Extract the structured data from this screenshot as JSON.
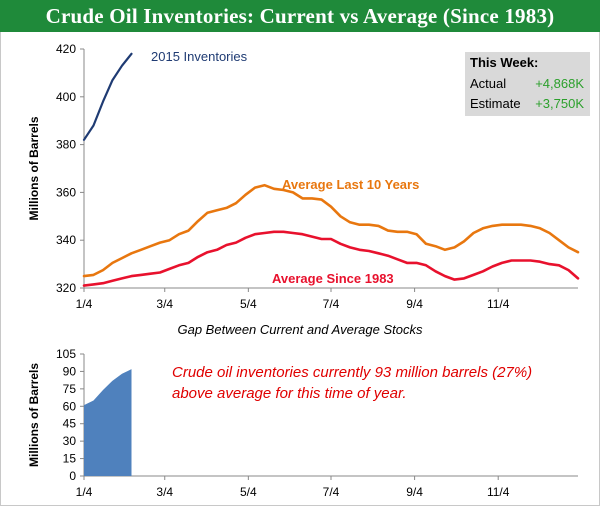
{
  "header": {
    "title": "Crude Oil Inventories: Current vs Average (Since 1983)"
  },
  "stat_box": {
    "title": "This Week:",
    "rows": [
      {
        "label": "Actual",
        "value": "+4,868K"
      },
      {
        "label": "Estimate",
        "value": "+3,750K"
      }
    ]
  },
  "gap_title": "Gap Between Current and Average Stocks",
  "gap_note_line1": "Crude oil inventories currently 93 million barrels (27%)",
  "gap_note_line2": "above average for this time of year.",
  "colors": {
    "header": "#1f8a3a",
    "inv2015": "#1f3b73",
    "avg10": "#e8770f",
    "avg1983": "#e8112d",
    "gap_area": "#4f81bd",
    "positive": "#2ca02c",
    "note": "#e00000"
  },
  "chart_data": [
    {
      "type": "line",
      "title": "",
      "ylabel": "Millions of Barrels",
      "xlabel": "",
      "ylim": [
        320,
        420
      ],
      "yticks": [
        320,
        340,
        360,
        380,
        400,
        420
      ],
      "xlim_week": [
        0,
        52
      ],
      "xticks": [
        {
          "label": "1/4",
          "week": 0
        },
        {
          "label": "3/4",
          "week": 8.5
        },
        {
          "label": "5/4",
          "week": 17.3
        },
        {
          "label": "7/4",
          "week": 26
        },
        {
          "label": "9/4",
          "week": 34.8
        },
        {
          "label": "11/4",
          "week": 43.6
        }
      ],
      "series": [
        {
          "name": "2015 Inventories",
          "color": "#1f3b73",
          "x": [
            0,
            1,
            2,
            3,
            4,
            5
          ],
          "y": [
            382,
            388,
            398,
            407,
            413,
            418
          ]
        },
        {
          "name": "Average Last 10 Years",
          "color": "#e8770f",
          "x": [
            0,
            1,
            2,
            3,
            4,
            5,
            6,
            7,
            8,
            9,
            10,
            11,
            12,
            13,
            14,
            15,
            16,
            17,
            18,
            19,
            20,
            21,
            22,
            23,
            24,
            25,
            26,
            27,
            28,
            29,
            30,
            31,
            32,
            33,
            34,
            35,
            36,
            37,
            38,
            39,
            40,
            41,
            42,
            43,
            44,
            45,
            46,
            47,
            48,
            49,
            50,
            51,
            52
          ],
          "y": [
            325,
            325.5,
            327.5,
            330.5,
            332.5,
            334.5,
            336,
            337.5,
            339,
            340,
            342.5,
            344,
            348,
            351.5,
            352.5,
            353.5,
            355.5,
            359,
            362,
            363,
            361.5,
            361,
            360,
            357.5,
            357.5,
            357,
            354,
            350,
            347.5,
            346.5,
            346.5,
            346,
            344,
            343.5,
            343.5,
            342.5,
            338.5,
            337.5,
            336,
            337,
            339.5,
            343,
            345,
            346,
            346.5,
            346.5,
            346.5,
            346,
            345,
            343,
            340,
            337,
            335
          ]
        },
        {
          "name": "Average Since 1983",
          "color": "#e8112d",
          "x": [
            0,
            1,
            2,
            3,
            4,
            5,
            6,
            7,
            8,
            9,
            10,
            11,
            12,
            13,
            14,
            15,
            16,
            17,
            18,
            19,
            20,
            21,
            22,
            23,
            24,
            25,
            26,
            27,
            28,
            29,
            30,
            31,
            32,
            33,
            34,
            35,
            36,
            37,
            38,
            39,
            40,
            41,
            42,
            43,
            44,
            45,
            46,
            47,
            48,
            49,
            50,
            51,
            52
          ],
          "y": [
            321,
            321.5,
            322,
            323,
            324,
            325,
            325.5,
            326,
            326.5,
            328,
            329.5,
            330.5,
            333,
            335,
            336,
            338,
            339,
            341,
            342.5,
            343,
            343.5,
            343.5,
            343,
            342.5,
            341.5,
            340.5,
            340.5,
            338.5,
            337,
            336,
            335.5,
            334.5,
            333.5,
            332,
            330.5,
            330.5,
            329.5,
            327,
            325,
            323.5,
            324,
            325.5,
            327,
            329,
            330.5,
            331.5,
            331.5,
            331.5,
            331,
            330,
            329.5,
            327.5,
            324
          ]
        }
      ]
    },
    {
      "type": "area",
      "title": "Gap Between Current and Average Stocks",
      "ylabel": "Millions of Barrels",
      "xlabel": "",
      "ylim": [
        0,
        105
      ],
      "yticks": [
        0,
        15,
        30,
        45,
        60,
        75,
        90,
        105
      ],
      "xlim_week": [
        0,
        52
      ],
      "xticks": [
        {
          "label": "1/4",
          "week": 0
        },
        {
          "label": "3/4",
          "week": 8.5
        },
        {
          "label": "5/4",
          "week": 17.3
        },
        {
          "label": "7/4",
          "week": 26
        },
        {
          "label": "9/4",
          "week": 34.8
        },
        {
          "label": "11/4",
          "week": 43.6
        }
      ],
      "series": [
        {
          "name": "",
          "color": "#4f81bd",
          "x": [
            0,
            1,
            2,
            3,
            4,
            5
          ],
          "y": [
            61,
            65,
            74,
            82,
            88,
            92
          ]
        }
      ]
    }
  ]
}
